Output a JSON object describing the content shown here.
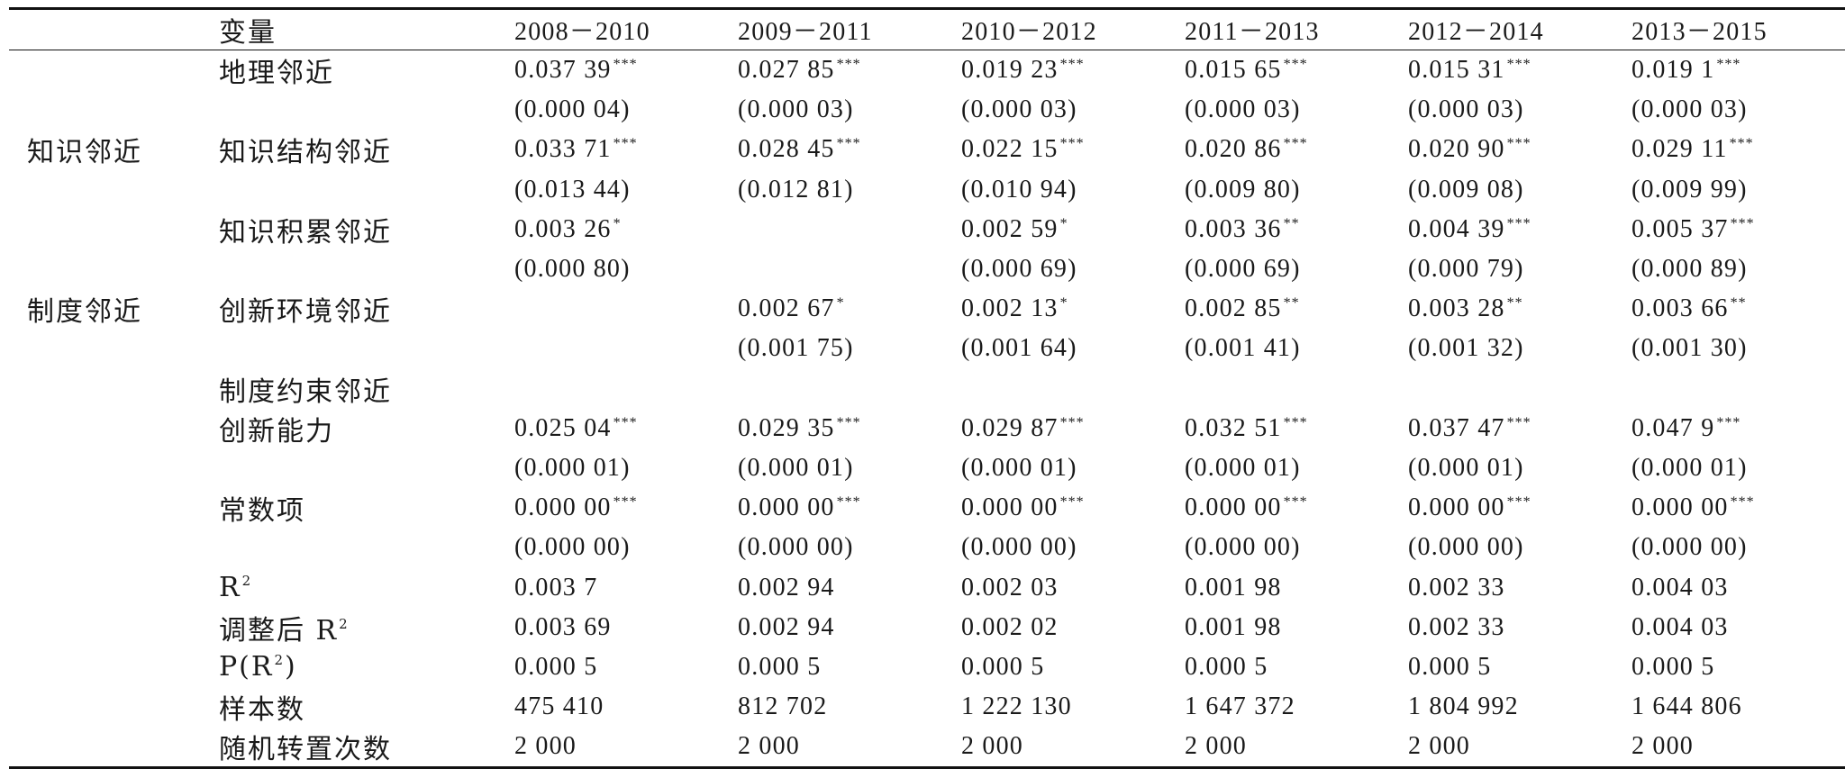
{
  "table": {
    "header": {
      "variable": "变量",
      "years": [
        "2008－2010",
        "2009－2011",
        "2010－2012",
        "2011－2013",
        "2012－2014",
        "2013－2015"
      ]
    },
    "rows": [
      {
        "group": "",
        "label": "地理邻近",
        "kind": "coef",
        "cells": [
          [
            "0.037 39",
            "***"
          ],
          [
            "0.027 85",
            "***"
          ],
          [
            "0.019 23",
            "***"
          ],
          [
            "0.015 65",
            "***"
          ],
          [
            "0.015 31",
            "***"
          ],
          [
            "0.019 1",
            "***"
          ]
        ]
      },
      {
        "group": "",
        "label": "",
        "kind": "se",
        "cells": [
          [
            "(0.000 04)",
            ""
          ],
          [
            "(0.000 03)",
            ""
          ],
          [
            "(0.000 03)",
            ""
          ],
          [
            "(0.000 03)",
            ""
          ],
          [
            "(0.000 03)",
            ""
          ],
          [
            "(0.000 03)",
            ""
          ]
        ]
      },
      {
        "group": "知识邻近",
        "label": "知识结构邻近",
        "kind": "coef",
        "cells": [
          [
            "0.033 71",
            "***"
          ],
          [
            "0.028 45",
            "***"
          ],
          [
            "0.022 15",
            "***"
          ],
          [
            "0.020 86",
            "***"
          ],
          [
            "0.020 90",
            "***"
          ],
          [
            "0.029 11",
            "***"
          ]
        ]
      },
      {
        "group": "",
        "label": "",
        "kind": "se",
        "cells": [
          [
            "(0.013 44)",
            ""
          ],
          [
            "(0.012 81)",
            ""
          ],
          [
            "(0.010 94)",
            ""
          ],
          [
            "(0.009 80)",
            ""
          ],
          [
            "(0.009 08)",
            ""
          ],
          [
            "(0.009 99)",
            ""
          ]
        ]
      },
      {
        "group": "",
        "label": "知识积累邻近",
        "kind": "coef",
        "cells": [
          [
            "0.003 26",
            "*"
          ],
          [
            "",
            ""
          ],
          [
            "0.002 59",
            "*"
          ],
          [
            "0.003 36",
            "**"
          ],
          [
            "0.004 39",
            "***"
          ],
          [
            "0.005 37",
            "***"
          ]
        ]
      },
      {
        "group": "",
        "label": "",
        "kind": "se",
        "cells": [
          [
            "(0.000 80)",
            ""
          ],
          [
            "",
            ""
          ],
          [
            "(0.000 69)",
            ""
          ],
          [
            "(0.000 69)",
            ""
          ],
          [
            "(0.000 79)",
            ""
          ],
          [
            "(0.000 89)",
            ""
          ]
        ]
      },
      {
        "group": "制度邻近",
        "label": "创新环境邻近",
        "kind": "coef",
        "cells": [
          [
            "",
            ""
          ],
          [
            "0.002 67",
            "*"
          ],
          [
            "0.002 13",
            "*"
          ],
          [
            "0.002 85",
            "**"
          ],
          [
            "0.003 28",
            "**"
          ],
          [
            "0.003 66",
            "**"
          ]
        ]
      },
      {
        "group": "",
        "label": "",
        "kind": "se",
        "cells": [
          [
            "",
            ""
          ],
          [
            "(0.001 75)",
            ""
          ],
          [
            "(0.001 64)",
            ""
          ],
          [
            "(0.001 41)",
            ""
          ],
          [
            "(0.001 32)",
            ""
          ],
          [
            "(0.001 30)",
            ""
          ]
        ]
      },
      {
        "group": "",
        "label": "制度约束邻近",
        "kind": "coef",
        "cells": [
          [
            "",
            ""
          ],
          [
            "",
            ""
          ],
          [
            "",
            ""
          ],
          [
            "",
            ""
          ],
          [
            "",
            ""
          ],
          [
            "",
            ""
          ]
        ]
      },
      {
        "group": "",
        "label": "创新能力",
        "kind": "coef",
        "cells": [
          [
            "0.025 04",
            "***"
          ],
          [
            "0.029 35",
            "***"
          ],
          [
            "0.029 87",
            "***"
          ],
          [
            "0.032 51",
            "***"
          ],
          [
            "0.037 47",
            "***"
          ],
          [
            "0.047 9",
            "***"
          ]
        ]
      },
      {
        "group": "",
        "label": "",
        "kind": "se",
        "cells": [
          [
            "(0.000 01)",
            ""
          ],
          [
            "(0.000 01)",
            ""
          ],
          [
            "(0.000 01)",
            ""
          ],
          [
            "(0.000 01)",
            ""
          ],
          [
            "(0.000 01)",
            ""
          ],
          [
            "(0.000 01)",
            ""
          ]
        ]
      },
      {
        "group": "",
        "label": "常数项",
        "kind": "coef",
        "cells": [
          [
            "0.000 00",
            "***"
          ],
          [
            "0.000 00",
            "***"
          ],
          [
            "0.000 00",
            "***"
          ],
          [
            "0.000 00",
            "***"
          ],
          [
            "0.000 00",
            "***"
          ],
          [
            "0.000 00",
            "***"
          ]
        ]
      },
      {
        "group": "",
        "label": "",
        "kind": "se",
        "cells": [
          [
            "(0.000 00)",
            ""
          ],
          [
            "(0.000 00)",
            ""
          ],
          [
            "(0.000 00)",
            ""
          ],
          [
            "(0.000 00)",
            ""
          ],
          [
            "(0.000 00)",
            ""
          ],
          [
            "(0.000 00)",
            ""
          ]
        ]
      }
    ],
    "stats": [
      {
        "label_pre": "R",
        "label_sup": "2",
        "label_post": "",
        "cells": [
          "0.003 7",
          "0.002 94",
          "0.002 03",
          "0.001 98",
          "0.002 33",
          "0.004 03"
        ]
      },
      {
        "label_pre": "调整后 R",
        "label_sup": "2",
        "label_post": "",
        "cells": [
          "0.003 69",
          "0.002 94",
          "0.002 02",
          "0.001 98",
          "0.002 33",
          "0.004 03"
        ]
      },
      {
        "label_pre": "P(R",
        "label_sup": "2",
        "label_post": ")",
        "cells": [
          "0.000 5",
          "0.000 5",
          "0.000 5",
          "0.000 5",
          "0.000 5",
          "0.000 5"
        ]
      },
      {
        "label_pre": "样本数",
        "label_sup": "",
        "label_post": "",
        "cells": [
          "475 410",
          "812 702",
          "1 222 130",
          "1 647 372",
          "1 804 992",
          "1 644 806"
        ]
      },
      {
        "label_pre": "随机转置次数",
        "label_sup": "",
        "label_post": "",
        "cells": [
          "2 000",
          "2 000",
          "2 000",
          "2 000",
          "2 000",
          "2 000"
        ]
      }
    ]
  }
}
